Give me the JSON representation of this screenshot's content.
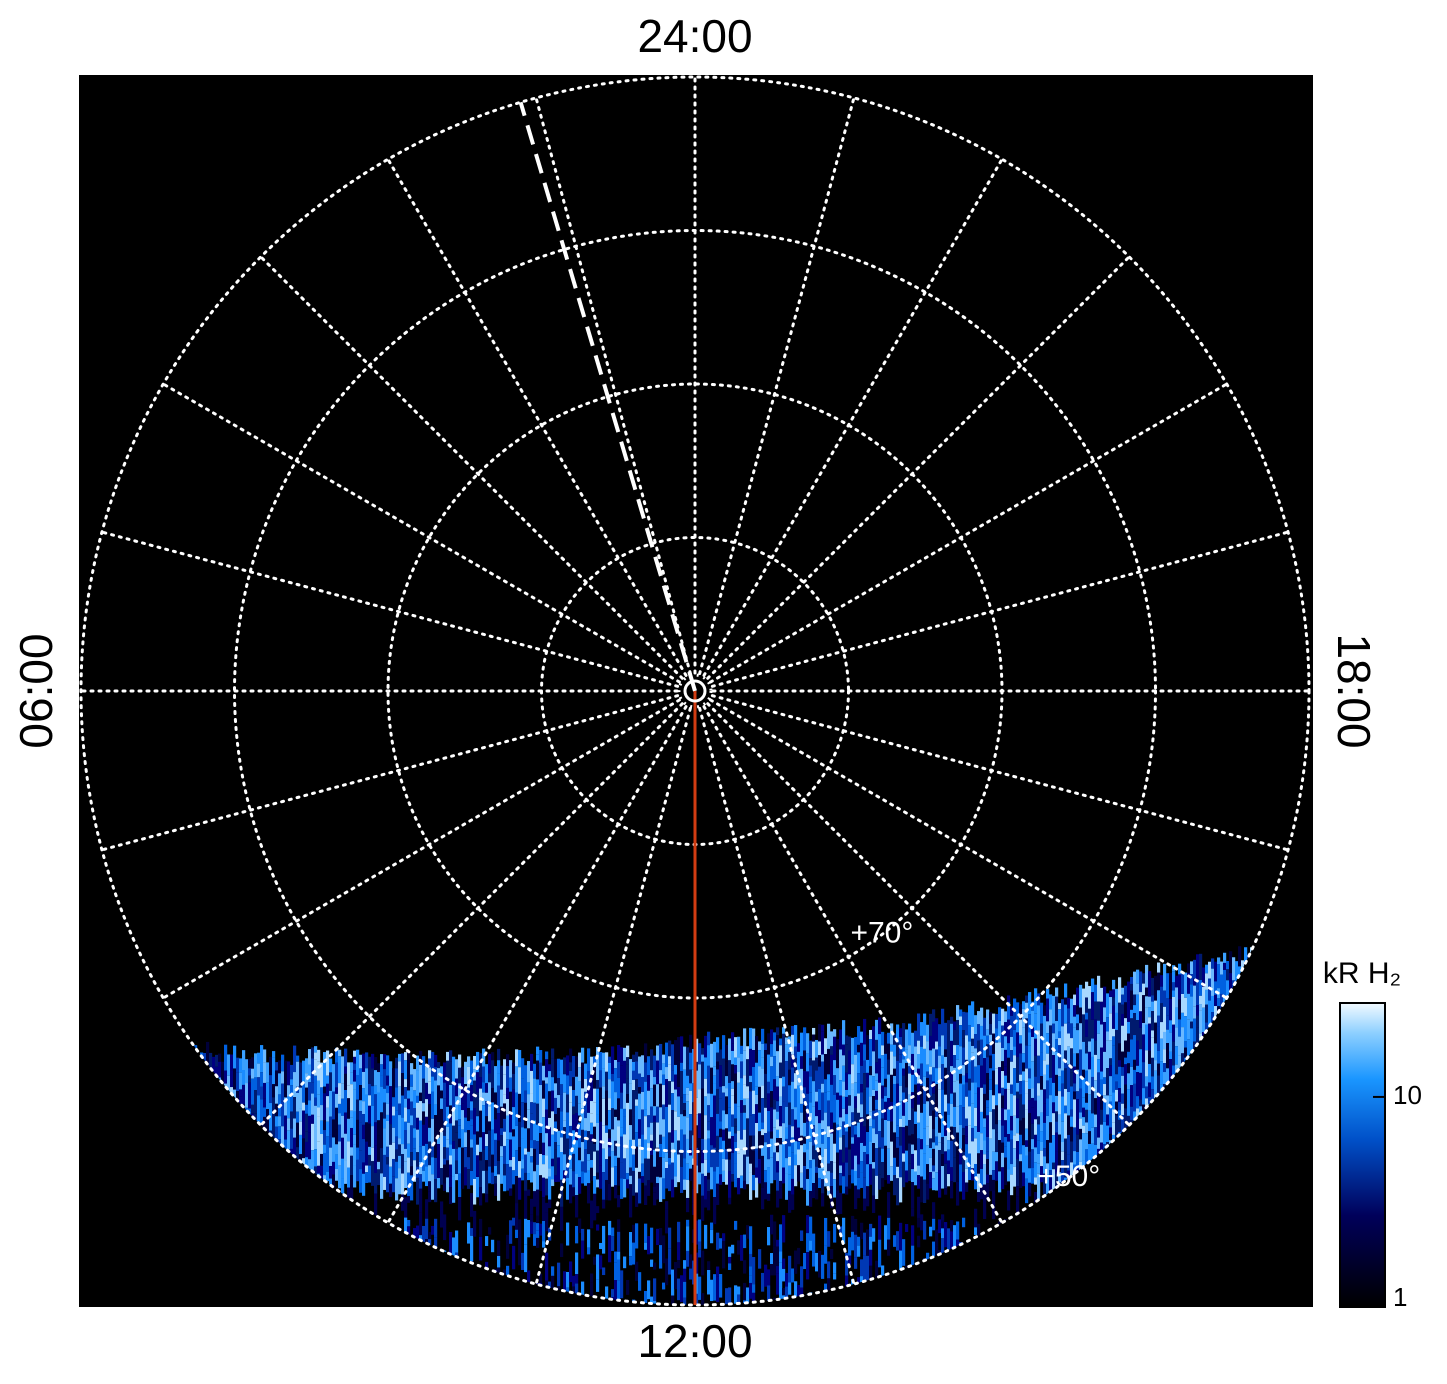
{
  "chart_data": {
    "type": "polar",
    "local_time_labels": {
      "top": "24:00",
      "left": "06:00",
      "right": "18:00",
      "bottom": "12:00"
    },
    "rlim": [
      90,
      50
    ],
    "lat_circles": [
      80,
      70,
      60,
      50
    ],
    "lt_ticks": [
      0,
      1,
      2,
      3,
      4,
      5,
      6,
      7,
      8,
      9,
      10,
      11,
      12,
      13,
      14,
      15,
      16,
      17,
      18,
      19,
      20,
      21,
      22,
      23
    ],
    "lat_labels": [
      {
        "lat": 70,
        "lt": 14.5,
        "label": "+70°"
      },
      {
        "lat": 50,
        "lt": 14.5,
        "label": "+50°"
      }
    ],
    "markers": [
      {
        "lt": 1.1,
        "color": "#ffffff",
        "dashed": true
      },
      {
        "lt": 12,
        "color": "#d23c12",
        "dashed": false
      }
    ],
    "colorbar": {
      "label": "kR H₂",
      "log": true,
      "clim": [
        1,
        28
      ],
      "ticks": [
        1,
        10
      ]
    }
  }
}
